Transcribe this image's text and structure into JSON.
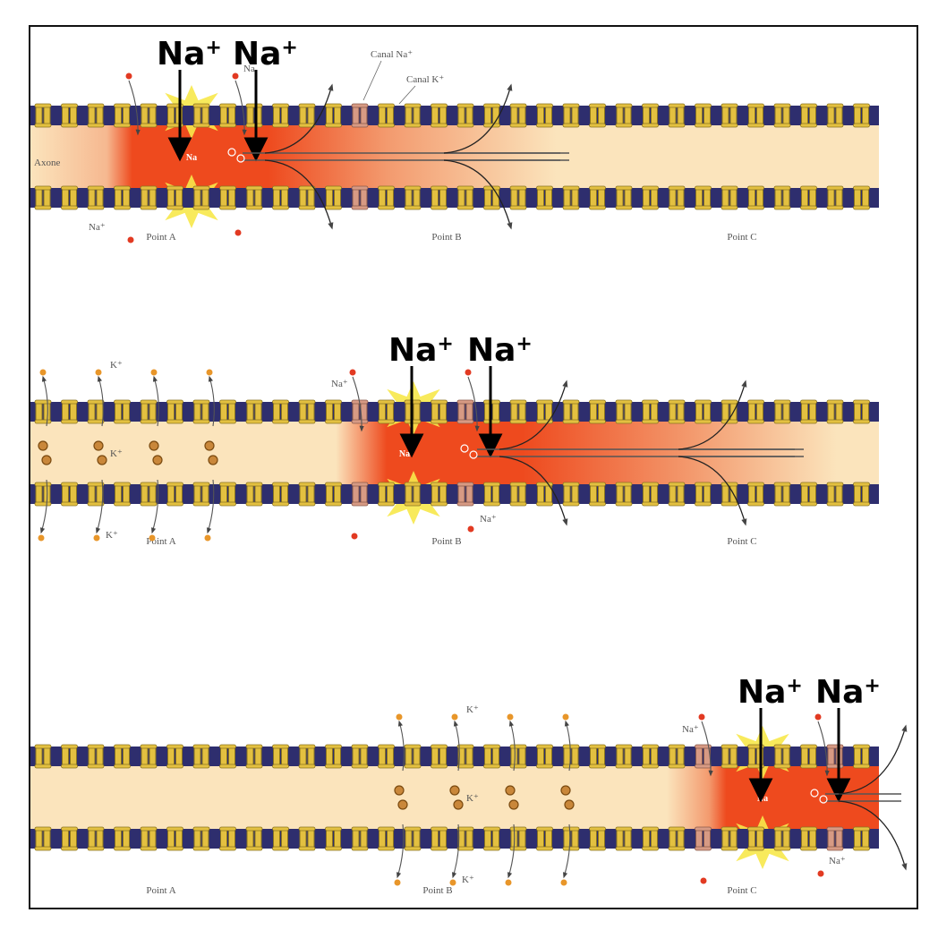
{
  "labels": {
    "na": "Na",
    "k": "K",
    "plus": "+",
    "canal_na": "Canal Na⁺",
    "canal_k": "Canal K⁺",
    "axone": "Axone",
    "na_plus": "Na⁺",
    "k_plus": "K⁺",
    "point_a": "Point A",
    "point_b": "Point B",
    "point_c": "Point C"
  },
  "colors": {
    "membrane": "#2e2e6e",
    "axon_fill": "#fbe4bc",
    "depolarized": "#ee4a1e",
    "k_channel": "#e3c040",
    "na_channel": "#d79a84",
    "k_ion": "#e8962a",
    "na_ion": "#e23a22",
    "flash": "#f7e84a"
  },
  "panels": [
    {
      "active_point": "Point A",
      "recovering_point": null
    },
    {
      "active_point": "Point B",
      "recovering_point": "Point A"
    },
    {
      "active_point": "Point C",
      "recovering_point": "Point B"
    }
  ]
}
